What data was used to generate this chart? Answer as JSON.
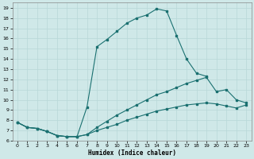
{
  "xlabel": "Humidex (Indice chaleur)",
  "bg_color": "#cfe8e8",
  "line_color": "#1a7070",
  "grid_color": "#b8d8d8",
  "xlim": [
    -0.5,
    23.5
  ],
  "ylim": [
    6,
    19.5
  ],
  "yticks": [
    6,
    7,
    8,
    9,
    10,
    11,
    12,
    13,
    14,
    15,
    16,
    17,
    18,
    19
  ],
  "xticks": [
    0,
    1,
    2,
    3,
    4,
    5,
    6,
    7,
    8,
    9,
    10,
    11,
    12,
    13,
    14,
    15,
    16,
    17,
    18,
    19,
    20,
    21,
    22,
    23
  ],
  "curve1_x": [
    0,
    1,
    2,
    3,
    4,
    5,
    6,
    7,
    8,
    9,
    10,
    11,
    12,
    13,
    14,
    15,
    16,
    17,
    18,
    19
  ],
  "curve1_y": [
    7.8,
    7.3,
    7.2,
    6.9,
    6.5,
    6.4,
    6.4,
    9.3,
    15.2,
    15.9,
    16.7,
    17.5,
    18.0,
    18.3,
    18.9,
    18.7,
    16.3,
    14.0,
    12.6,
    12.3
  ],
  "curve2_x": [
    0,
    1,
    2,
    3,
    4,
    5,
    6,
    7,
    8,
    9,
    10,
    11,
    12,
    13,
    14,
    15,
    16,
    17,
    18,
    19,
    20,
    21,
    22,
    23
  ],
  "curve2_y": [
    7.8,
    7.3,
    7.2,
    6.9,
    6.5,
    6.4,
    6.4,
    6.6,
    7.3,
    7.9,
    8.5,
    9.0,
    9.5,
    10.0,
    10.5,
    10.8,
    11.2,
    11.6,
    11.9,
    12.2,
    10.8,
    11.0,
    10.0,
    9.7
  ],
  "curve3_x": [
    0,
    1,
    2,
    3,
    4,
    5,
    6,
    7,
    8,
    9,
    10,
    11,
    12,
    13,
    14,
    15,
    16,
    17,
    18,
    19,
    20,
    21,
    22,
    23
  ],
  "curve3_y": [
    7.8,
    7.3,
    7.2,
    6.9,
    6.5,
    6.4,
    6.4,
    6.6,
    7.0,
    7.3,
    7.6,
    8.0,
    8.3,
    8.6,
    8.9,
    9.1,
    9.3,
    9.5,
    9.6,
    9.7,
    9.6,
    9.4,
    9.2,
    9.5
  ]
}
